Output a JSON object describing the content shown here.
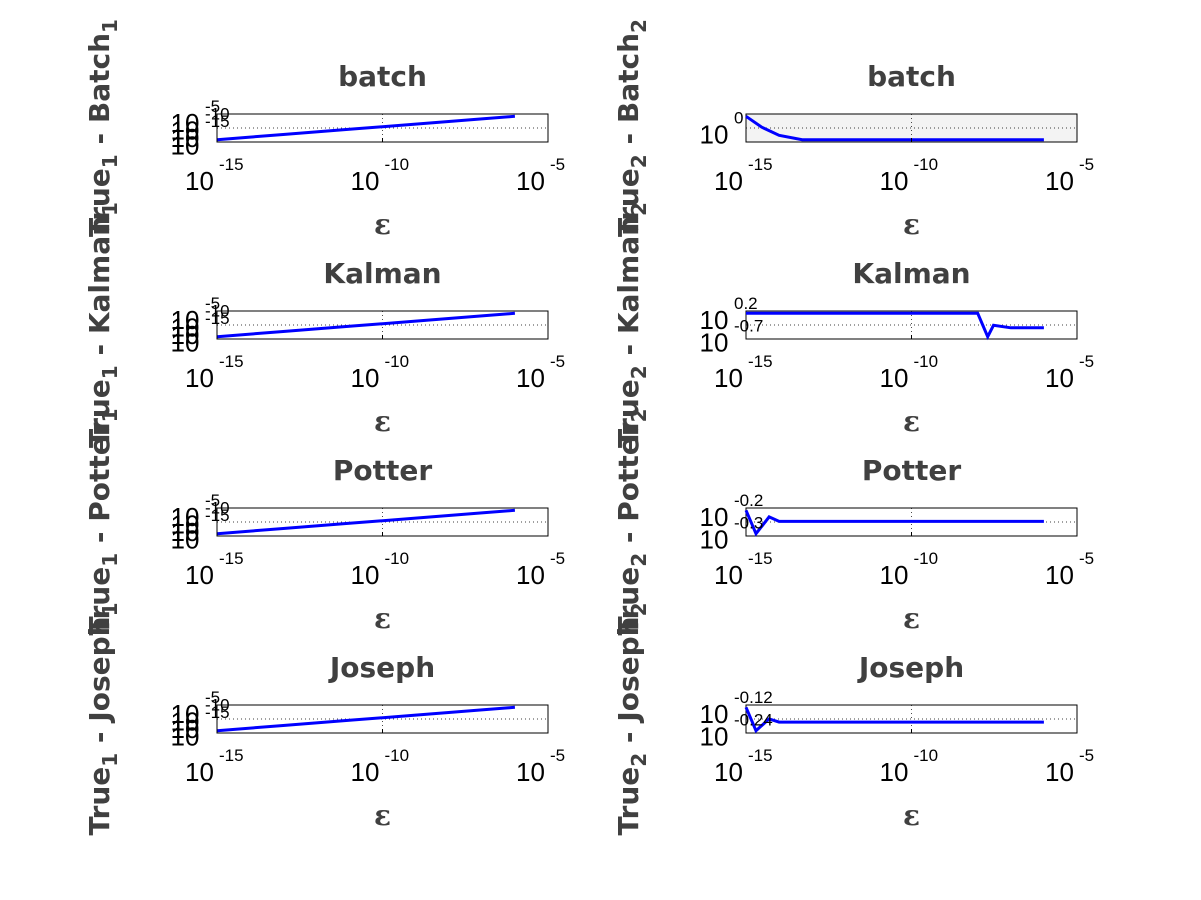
{
  "chart_data": [
    {
      "type": "line",
      "title": "batch",
      "xlabel": "ε",
      "ylabel": {
        "base": "True",
        "sub": "1",
        "rest": " - Batch",
        "sub2": "1"
      },
      "xscale": "log",
      "xlim": [
        1e-15,
        1e-05
      ],
      "xticks": [
        {
          "base": "10",
          "exp": "-15"
        },
        {
          "base": "10",
          "exp": "-10"
        },
        {
          "base": "10",
          "exp": "-5"
        }
      ],
      "yscale": "log",
      "ytick_labels": [
        {
          "base": "10",
          "exp": "-5"
        },
        {
          "base": "10",
          "exp": "-10"
        },
        {
          "base": "10",
          "exp": "-15"
        },
        {
          "base": "10",
          "exp": ""
        }
      ],
      "grid": true,
      "series": [
        {
          "color": "#0000ff",
          "x": [
            1e-15,
            1e-14,
            1e-13,
            1e-12,
            1e-11,
            1e-10,
            1e-09,
            1e-08,
            1e-07,
            1e-06
          ],
          "y": [
            1e-15,
            1e-14,
            1e-13,
            1e-12,
            1e-11,
            1e-10,
            1e-09,
            1e-08,
            1e-07,
            1e-06
          ]
        }
      ]
    },
    {
      "type": "line",
      "title": "batch",
      "xlabel": "ε",
      "ylabel": {
        "base": "True",
        "sub": "2",
        "rest": " - Batch",
        "sub2": "2"
      },
      "xscale": "log",
      "xlim": [
        1e-15,
        1e-05
      ],
      "xticks": [
        {
          "base": "10",
          "exp": "-15"
        },
        {
          "base": "10",
          "exp": "-10"
        },
        {
          "base": "10",
          "exp": "-5"
        }
      ],
      "yscale": "log",
      "ytick_labels": [
        {
          "base": "10",
          "exp": "0"
        }
      ],
      "grid": true,
      "series": [
        {
          "color": "#0000ff",
          "x": [
            1e-15,
            3e-15,
            1e-14,
            5e-14,
            1e-12,
            1e-09,
            1e-06
          ],
          "y": [
            1.3,
            1.15,
            1.05,
            1.0,
            1.0,
            1.0,
            1.0
          ]
        }
      ]
    },
    {
      "type": "line",
      "title": "Kalman",
      "xlabel": "ε",
      "ylabel": {
        "base": "True",
        "sub": "1",
        "rest": " - Kalman",
        "sub2": "1"
      },
      "xscale": "log",
      "xlim": [
        1e-15,
        1e-05
      ],
      "xticks": [
        {
          "base": "10",
          "exp": "-15"
        },
        {
          "base": "10",
          "exp": "-10"
        },
        {
          "base": "10",
          "exp": "-5"
        }
      ],
      "yscale": "log",
      "ytick_labels": [
        {
          "base": "10",
          "exp": "-5"
        },
        {
          "base": "10",
          "exp": "-10"
        },
        {
          "base": "10",
          "exp": "-15"
        },
        {
          "base": "10",
          "exp": ""
        }
      ],
      "grid": true,
      "series": [
        {
          "color": "#0000ff",
          "x": [
            1e-15,
            1e-13,
            1e-11,
            1e-09,
            1e-08,
            1e-07,
            1e-06
          ],
          "y": [
            1e-15,
            1e-13,
            1e-11,
            1e-09,
            1e-08,
            1e-07,
            1e-06
          ]
        }
      ]
    },
    {
      "type": "line",
      "title": "Kalman",
      "xlabel": "ε",
      "ylabel": {
        "base": "True",
        "sub": "2",
        "rest": " - Kalman",
        "sub2": "2"
      },
      "xscale": "log",
      "xlim": [
        1e-15,
        1e-05
      ],
      "xticks": [
        {
          "base": "10",
          "exp": "-15"
        },
        {
          "base": "10",
          "exp": "-10"
        },
        {
          "base": "10",
          "exp": "-5"
        }
      ],
      "yscale": "log",
      "ytick_labels": [
        {
          "base": "10",
          "exp": "0.2"
        },
        {
          "base": "10",
          "exp": "-0.7"
        }
      ],
      "grid": true,
      "series": [
        {
          "color": "#0000ff",
          "x": [
            1e-15,
            1e-12,
            1e-10,
            1e-08,
            2e-08,
            3e-08,
            1e-07,
            1e-06
          ],
          "y": [
            1.0,
            1.0,
            1.0,
            1.0,
            0.5,
            0.7,
            0.65,
            0.65
          ]
        }
      ]
    },
    {
      "type": "line",
      "title": "Potter",
      "xlabel": "ε",
      "ylabel": {
        "base": "True",
        "sub": "1",
        "rest": " - Potter",
        "sub2": "1"
      },
      "xscale": "log",
      "xlim": [
        1e-15,
        1e-05
      ],
      "xticks": [
        {
          "base": "10",
          "exp": "-15"
        },
        {
          "base": "10",
          "exp": "-10"
        },
        {
          "base": "10",
          "exp": "-5"
        }
      ],
      "yscale": "log",
      "ytick_labels": [
        {
          "base": "10",
          "exp": "-5"
        },
        {
          "base": "10",
          "exp": "-10"
        },
        {
          "base": "10",
          "exp": "-15"
        },
        {
          "base": "10",
          "exp": ""
        }
      ],
      "grid": true,
      "series": [
        {
          "color": "#0000ff",
          "x": [
            1e-15,
            1e-13,
            1e-11,
            1e-09,
            1e-07,
            1e-06
          ],
          "y": [
            1e-15,
            1e-13,
            1e-11,
            1e-09,
            1e-07,
            1e-06
          ]
        }
      ]
    },
    {
      "type": "line",
      "title": "Potter",
      "xlabel": "ε",
      "ylabel": {
        "base": "True",
        "sub": "2",
        "rest": " - Potter",
        "sub2": "2"
      },
      "xscale": "log",
      "xlim": [
        1e-15,
        1e-05
      ],
      "xticks": [
        {
          "base": "10",
          "exp": "-15"
        },
        {
          "base": "10",
          "exp": "-10"
        },
        {
          "base": "10",
          "exp": "-5"
        }
      ],
      "yscale": "log",
      "ytick_labels": [
        {
          "base": "10",
          "exp": "-0.2"
        },
        {
          "base": "10",
          "exp": "-0.3"
        }
      ],
      "grid": true,
      "series": [
        {
          "color": "#0000ff",
          "x": [
            1e-15,
            2e-15,
            5e-15,
            1e-14,
            1e-13,
            1e-12,
            1e-09,
            1e-06
          ],
          "y": [
            0.55,
            0.45,
            0.52,
            0.5,
            0.5,
            0.5,
            0.5,
            0.5
          ]
        }
      ]
    },
    {
      "type": "line",
      "title": "Joseph",
      "xlabel": "ε",
      "ylabel": {
        "base": "True",
        "sub": "1",
        "rest": " - Joseph",
        "sub2": "1"
      },
      "xscale": "log",
      "xlim": [
        1e-15,
        1e-05
      ],
      "xticks": [
        {
          "base": "10",
          "exp": "-15"
        },
        {
          "base": "10",
          "exp": "-10"
        },
        {
          "base": "10",
          "exp": "-5"
        }
      ],
      "yscale": "log",
      "ytick_labels": [
        {
          "base": "10",
          "exp": "-5"
        },
        {
          "base": "10",
          "exp": "-10"
        },
        {
          "base": "10",
          "exp": "-15"
        },
        {
          "base": "10",
          "exp": ""
        }
      ],
      "grid": true,
      "series": [
        {
          "color": "#0000ff",
          "x": [
            1e-15,
            1e-13,
            1e-11,
            1e-09,
            1e-07,
            1e-06
          ],
          "y": [
            1e-15,
            1e-13,
            1e-11,
            1e-09,
            1e-07,
            1e-06
          ]
        }
      ]
    },
    {
      "type": "line",
      "title": "Joseph",
      "xlabel": "ε",
      "ylabel": {
        "base": "True",
        "sub": "2",
        "rest": " - Joseph",
        "sub2": "2"
      },
      "xscale": "log",
      "xlim": [
        1e-15,
        1e-05
      ],
      "xticks": [
        {
          "base": "10",
          "exp": "-15"
        },
        {
          "base": "10",
          "exp": "-10"
        },
        {
          "base": "10",
          "exp": "-5"
        }
      ],
      "yscale": "log",
      "ytick_labels": [
        {
          "base": "10",
          "exp": "-0.12"
        },
        {
          "base": "10",
          "exp": "-0.24"
        }
      ],
      "grid": true,
      "series": [
        {
          "color": "#0000ff",
          "x": [
            1e-15,
            2e-15,
            5e-15,
            1e-14,
            1e-13,
            1e-12,
            1e-09,
            1e-06
          ],
          "y": [
            0.6,
            0.45,
            0.52,
            0.5,
            0.5,
            0.5,
            0.5,
            0.5
          ]
        }
      ]
    }
  ]
}
